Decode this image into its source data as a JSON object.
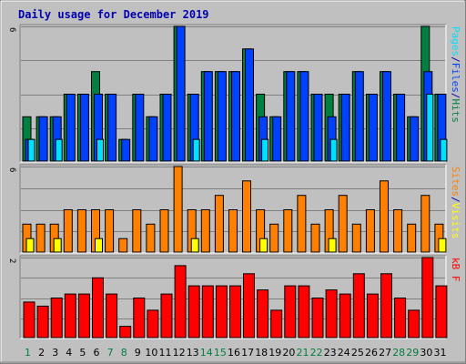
{
  "title": "Daily usage for December 2019",
  "colors": {
    "hits": "#008040",
    "files": "#0040ff",
    "pages": "#00e0ff",
    "visits": "#ffff00",
    "sites": "#ff8000",
    "kbytes": "#ff0000",
    "weekend_label": "#008040",
    "weekday_label": "#000000",
    "legend_sep": "#0000b0"
  },
  "chart_data": [
    {
      "type": "bar",
      "panel": "hits-files-pages",
      "categories": [
        "1",
        "2",
        "3",
        "4",
        "5",
        "6",
        "7",
        "8",
        "9",
        "10",
        "11",
        "12",
        "13",
        "14",
        "15",
        "16",
        "17",
        "18",
        "19",
        "20",
        "21",
        "22",
        "23",
        "24",
        "25",
        "26",
        "27",
        "28",
        "29",
        "30",
        "31"
      ],
      "weekend_days": [
        "1",
        "7",
        "8",
        "14",
        "15",
        "21",
        "22",
        "28",
        "29"
      ],
      "ylim": [
        0,
        6
      ],
      "y_tick_label": "6",
      "legend": [
        "Pages",
        "/",
        "Files",
        "/",
        "Hits"
      ],
      "series": [
        {
          "name": "Hits",
          "key": "hits",
          "values": [
            2,
            2,
            2,
            3,
            3,
            4,
            3,
            1,
            3,
            2,
            3,
            6,
            3,
            4,
            4,
            4,
            5,
            3,
            2,
            4,
            4,
            3,
            3,
            3,
            4,
            3,
            4,
            3,
            2,
            6,
            3
          ]
        },
        {
          "name": "Files",
          "key": "files",
          "values": [
            1,
            2,
            2,
            3,
            3,
            3,
            3,
            1,
            3,
            2,
            3,
            6,
            3,
            4,
            4,
            4,
            5,
            2,
            2,
            4,
            4,
            3,
            2,
            3,
            4,
            3,
            4,
            3,
            2,
            4,
            3
          ]
        },
        {
          "name": "Pages",
          "key": "pages",
          "values": [
            1,
            0,
            1,
            0,
            0,
            1,
            0,
            0,
            0,
            0,
            0,
            0,
            1,
            0,
            0,
            0,
            0,
            1,
            0,
            0,
            0,
            0,
            1,
            0,
            0,
            0,
            0,
            0,
            0,
            3,
            1
          ]
        }
      ]
    },
    {
      "type": "bar",
      "panel": "sites-visits",
      "categories": [
        "1",
        "2",
        "3",
        "4",
        "5",
        "6",
        "7",
        "8",
        "9",
        "10",
        "11",
        "12",
        "13",
        "14",
        "15",
        "16",
        "17",
        "18",
        "19",
        "20",
        "21",
        "22",
        "23",
        "24",
        "25",
        "26",
        "27",
        "28",
        "29",
        "30",
        "31"
      ],
      "ylim": [
        0,
        6
      ],
      "y_tick_label": "6",
      "legend": [
        "Sites",
        "/",
        "Visits"
      ],
      "series": [
        {
          "name": "Sites",
          "key": "sites",
          "values": [
            2,
            2,
            2,
            3,
            3,
            3,
            3,
            1,
            3,
            2,
            3,
            6,
            3,
            3,
            4,
            3,
            5,
            3,
            2,
            3,
            4,
            2,
            3,
            4,
            2,
            3,
            5,
            3,
            2,
            4,
            2
          ]
        },
        {
          "name": "Visits",
          "key": "visits",
          "values": [
            1,
            0,
            1,
            0,
            0,
            1,
            0,
            0,
            0,
            0,
            0,
            0,
            1,
            0,
            0,
            0,
            0,
            1,
            0,
            0,
            0,
            0,
            1,
            0,
            0,
            0,
            0,
            0,
            0,
            0,
            1
          ]
        }
      ]
    },
    {
      "type": "bar",
      "panel": "kbytes",
      "categories": [
        "1",
        "2",
        "3",
        "4",
        "5",
        "6",
        "7",
        "8",
        "9",
        "10",
        "11",
        "12",
        "13",
        "14",
        "15",
        "16",
        "17",
        "18",
        "19",
        "20",
        "21",
        "22",
        "23",
        "24",
        "25",
        "26",
        "27",
        "28",
        "29",
        "30",
        "31"
      ],
      "ylim": [
        0,
        2
      ],
      "y_tick_label": "2",
      "legend": [
        "KBytes"
      ],
      "legend_text": "kB F",
      "series": [
        {
          "name": "KBytes",
          "key": "kbytes",
          "values": [
            0.9,
            0.8,
            1.0,
            1.1,
            1.1,
            1.5,
            1.1,
            0.3,
            1.0,
            0.7,
            1.1,
            1.8,
            1.3,
            1.3,
            1.3,
            1.3,
            1.6,
            1.2,
            0.7,
            1.3,
            1.3,
            1.0,
            1.2,
            1.1,
            1.6,
            1.1,
            1.6,
            1.0,
            0.7,
            2.0,
            1.3
          ]
        }
      ]
    }
  ]
}
